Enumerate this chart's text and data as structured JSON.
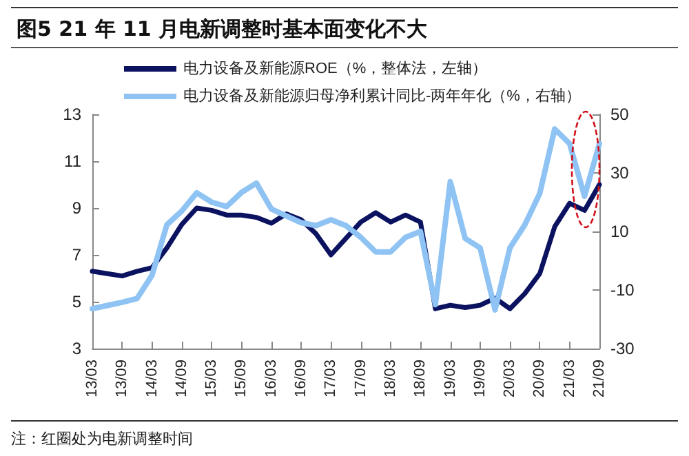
{
  "chart_data": {
    "type": "line",
    "title": "图5  21 年 11 月电新调整时基本面变化不大",
    "categories": [
      "13/03",
      null,
      "13/09",
      null,
      "14/03",
      null,
      "14/09",
      null,
      "15/03",
      null,
      "15/09",
      null,
      "16/03",
      null,
      "16/09",
      null,
      "17/03",
      null,
      "17/09",
      null,
      "18/03",
      null,
      "18/09",
      null,
      "19/03",
      null,
      "19/09",
      null,
      "20/03",
      null,
      "20/09",
      null,
      "21/03",
      null,
      "21/09"
    ],
    "series": [
      {
        "name": "电力设备及新能源ROE（%，整体法，左轴）",
        "color": "#0b1260",
        "values": [
          6.3,
          6.2,
          6.1,
          6.3,
          6.45,
          7.3,
          8.3,
          9.0,
          8.9,
          8.7,
          8.7,
          8.6,
          8.35,
          8.75,
          8.5,
          7.9,
          7.0,
          7.7,
          8.4,
          8.8,
          8.4,
          8.7,
          8.4,
          4.7,
          4.85,
          4.75,
          4.85,
          5.15,
          4.7,
          5.35,
          6.2,
          8.2,
          9.2,
          8.9,
          10.0
        ]
      },
      {
        "name": "电力设备及新能源归母净利累计同比-两年年化（%，右轴）",
        "color": "#8ec3f3",
        "axis": "y2",
        "values": [
          -16.4,
          -15.3,
          -14.2,
          -12.9,
          -5,
          12.3,
          17,
          23.2,
          20,
          18.5,
          23.3,
          26.5,
          17.7,
          15.3,
          13,
          12,
          14,
          12,
          8,
          3,
          3,
          8,
          10,
          -15,
          27,
          7.6,
          4.4,
          -16.8,
          4.4,
          12.3,
          23,
          45,
          40,
          22,
          40
        ]
      }
    ],
    "ylim": [
      3,
      13
    ],
    "yticks": [
      3,
      5,
      7,
      9,
      11,
      13
    ],
    "y2lim": [
      -30,
      50
    ],
    "y2ticks": [
      -30,
      -10,
      10,
      30,
      50
    ],
    "grid": false,
    "legend": "top",
    "marker": "none",
    "line_style": "solid",
    "annotations": [
      "注：红圈处为电新调整时间"
    ]
  }
}
